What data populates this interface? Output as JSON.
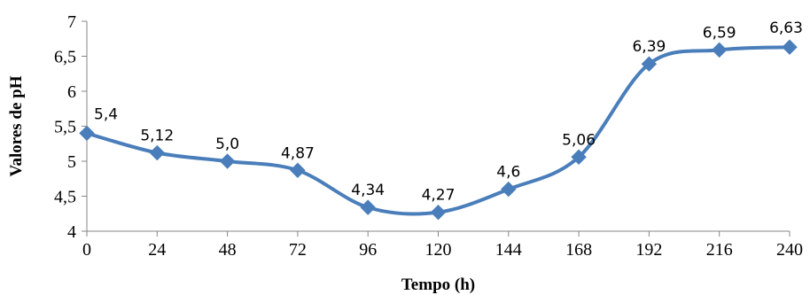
{
  "chart_data": {
    "type": "line",
    "xlabel": "Tempo (h)",
    "ylabel": "Valores de pH",
    "x": [
      0,
      24,
      48,
      72,
      96,
      120,
      144,
      168,
      192,
      216,
      240
    ],
    "x_tick_labels": [
      "0",
      "24",
      "48",
      "72",
      "96",
      "120",
      "144",
      "168",
      "192",
      "216",
      "240"
    ],
    "y_tick_labels": [
      "4",
      "4,5",
      "5",
      "5,5",
      "6",
      "6,5",
      "7"
    ],
    "y_ticks": [
      4,
      4.5,
      5,
      5.5,
      6,
      6.5,
      7
    ],
    "ylim": [
      4,
      7
    ],
    "xlim": [
      0,
      240
    ],
    "grid": false,
    "smooth": true,
    "series": [
      {
        "values": [
          5.4,
          5.12,
          5.0,
          4.87,
          4.34,
          4.27,
          4.6,
          5.06,
          6.39,
          6.59,
          6.63
        ],
        "data_labels": [
          "5,4",
          "5,12",
          "5,0",
          "4,87",
          "4,34",
          "4,27",
          "4,6",
          "5,06",
          "6,39",
          "6,59",
          "6,63"
        ],
        "color": "#4A7EBB",
        "marker": "diamond"
      }
    ]
  }
}
